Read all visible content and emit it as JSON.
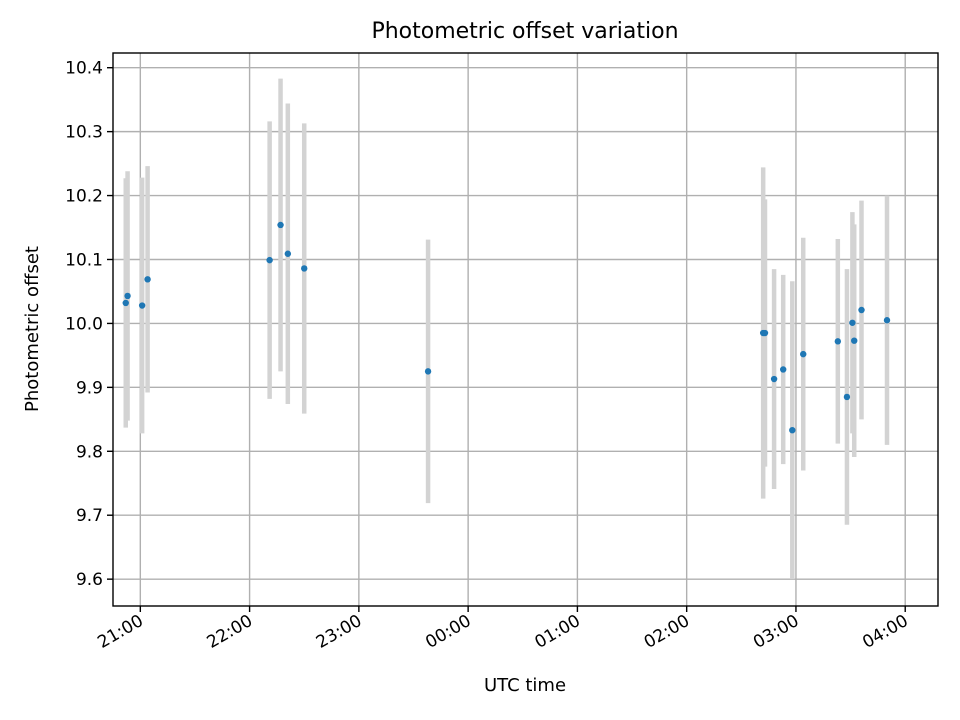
{
  "chart_data": {
    "type": "scatter",
    "title": "Photometric offset variation",
    "xlabel": "UTC time",
    "ylabel": "Photometric offset",
    "x_format": "HH:MM",
    "xlim": [
      "20:45",
      "04:18"
    ],
    "ylim": [
      9.558,
      10.423
    ],
    "x_ticks": [
      {
        "x": "21:00",
        "label": "21:00"
      },
      {
        "x": "22:00",
        "label": "22:00"
      },
      {
        "x": "23:00",
        "label": "23:00"
      },
      {
        "x": "00:00",
        "label": "00:00"
      },
      {
        "x": "01:00",
        "label": "01:00"
      },
      {
        "x": "02:00",
        "label": "02:00"
      },
      {
        "x": "03:00",
        "label": "03:00"
      },
      {
        "x": "04:00",
        "label": "04:00"
      }
    ],
    "y_ticks": [
      {
        "y": 9.6,
        "label": "9.6"
      },
      {
        "y": 9.7,
        "label": "9.7"
      },
      {
        "y": 9.8,
        "label": "9.8"
      },
      {
        "y": 9.9,
        "label": "9.9"
      },
      {
        "y": 10.0,
        "label": "10.0"
      },
      {
        "y": 10.1,
        "label": "10.1"
      },
      {
        "y": 10.2,
        "label": "10.2"
      },
      {
        "y": 10.3,
        "label": "10.3"
      },
      {
        "y": 10.4,
        "label": "10.4"
      }
    ],
    "grid": true,
    "colors": {
      "point": "#1f77b4",
      "errorbar": "#d3d3d3",
      "grid": "#b0b0b0"
    },
    "points": [
      {
        "x": "20:52",
        "y": 10.032,
        "yerr": 0.195
      },
      {
        "x": "20:53",
        "y": 10.043,
        "yerr": 0.195
      },
      {
        "x": "21:01",
        "y": 10.028,
        "yerr": 0.2
      },
      {
        "x": "21:04",
        "y": 10.069,
        "yerr": 0.177
      },
      {
        "x": "22:11",
        "y": 10.099,
        "yerr": 0.217
      },
      {
        "x": "22:17",
        "y": 10.154,
        "yerr": 0.229
      },
      {
        "x": "22:21",
        "y": 10.109,
        "yerr": 0.235
      },
      {
        "x": "22:30",
        "y": 10.086,
        "yerr": 0.227
      },
      {
        "x": "23:38",
        "y": 9.925,
        "yerr": 0.206
      },
      {
        "x": "02:42",
        "y": 9.985,
        "yerr": 0.259
      },
      {
        "x": "02:43",
        "y": 9.985,
        "yerr": 0.209
      },
      {
        "x": "02:48",
        "y": 9.913,
        "yerr": 0.172
      },
      {
        "x": "02:53",
        "y": 9.928,
        "yerr": 0.148
      },
      {
        "x": "02:58",
        "y": 9.833,
        "yerr": 0.233
      },
      {
        "x": "03:04",
        "y": 9.952,
        "yerr": 0.182
      },
      {
        "x": "03:23",
        "y": 9.972,
        "yerr": 0.16
      },
      {
        "x": "03:28",
        "y": 9.885,
        "yerr": 0.2
      },
      {
        "x": "03:31",
        "y": 10.001,
        "yerr": 0.173
      },
      {
        "x": "03:32",
        "y": 9.973,
        "yerr": 0.182
      },
      {
        "x": "03:36",
        "y": 10.021,
        "yerr": 0.171
      },
      {
        "x": "03:50",
        "y": 10.005,
        "yerr": 0.195
      }
    ]
  }
}
